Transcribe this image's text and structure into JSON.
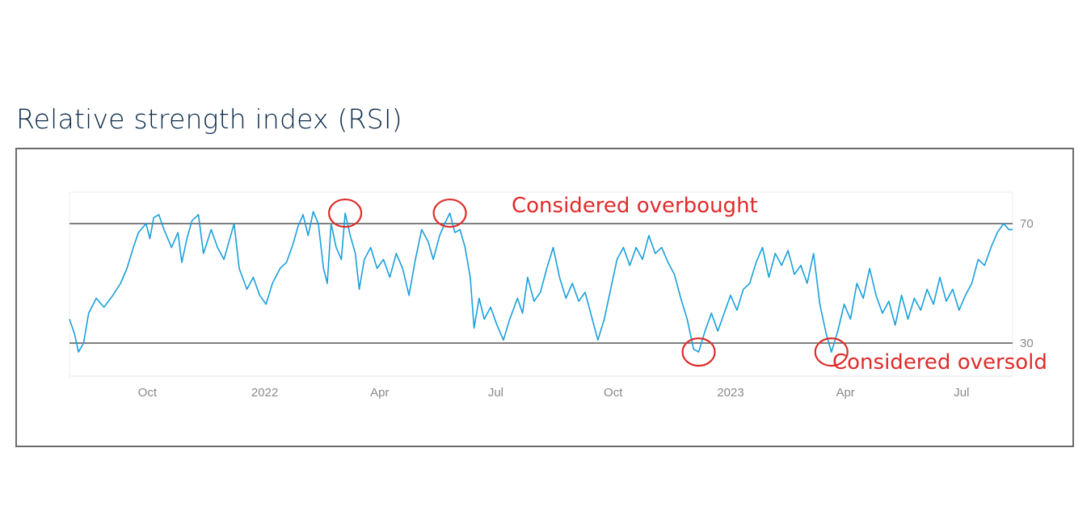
{
  "page": {
    "title": "Relative strength index (RSI)"
  },
  "colors": {
    "line": "#1aa0dc",
    "reference": "#555555",
    "annotation": "#e02b2b",
    "title": "#0b2b4a"
  },
  "chart_data": {
    "type": "line",
    "title": "Relative strength index (RSI)",
    "xlabel": "",
    "ylabel": "",
    "x_range": [
      "2021-08-01",
      "2023-08-10"
    ],
    "ylim": [
      20,
      80
    ],
    "y_ticks": [
      30,
      70
    ],
    "x_ticks": [
      {
        "date": "2021-10-01",
        "label": "Oct"
      },
      {
        "date": "2022-01-01",
        "label": "2022"
      },
      {
        "date": "2022-04-01",
        "label": "Apr"
      },
      {
        "date": "2022-07-01",
        "label": "Jul"
      },
      {
        "date": "2022-10-01",
        "label": "Oct"
      },
      {
        "date": "2023-01-01",
        "label": "2023"
      },
      {
        "date": "2023-04-01",
        "label": "Apr"
      },
      {
        "date": "2023-07-01",
        "label": "Jul"
      }
    ],
    "reference_lines": [
      {
        "y": 70,
        "label": "Considered overbought"
      },
      {
        "y": 30,
        "label": "Considered oversold"
      }
    ],
    "highlights": [
      {
        "date": "2022-03-05",
        "y": 73.5
      },
      {
        "date": "2022-05-26",
        "y": 73.5
      },
      {
        "date": "2022-12-07",
        "y": 27
      },
      {
        "date": "2023-03-21",
        "y": 27
      }
    ],
    "series": [
      {
        "points": [
          [
            "2021-08-01",
            38
          ],
          [
            "2021-08-05",
            33
          ],
          [
            "2021-08-08",
            27
          ],
          [
            "2021-08-12",
            30
          ],
          [
            "2021-08-16",
            40
          ],
          [
            "2021-08-22",
            45
          ],
          [
            "2021-08-28",
            42
          ],
          [
            "2021-09-04",
            46
          ],
          [
            "2021-09-10",
            50
          ],
          [
            "2021-09-15",
            55
          ],
          [
            "2021-09-20",
            62
          ],
          [
            "2021-09-24",
            67
          ],
          [
            "2021-09-30",
            70
          ],
          [
            "2021-10-03",
            65
          ],
          [
            "2021-10-06",
            72
          ],
          [
            "2021-10-10",
            73
          ],
          [
            "2021-10-14",
            68
          ],
          [
            "2021-10-20",
            62
          ],
          [
            "2021-10-25",
            67
          ],
          [
            "2021-10-28",
            57
          ],
          [
            "2021-11-01",
            65
          ],
          [
            "2021-11-05",
            71
          ],
          [
            "2021-11-10",
            73
          ],
          [
            "2021-11-14",
            60
          ],
          [
            "2021-11-20",
            68
          ],
          [
            "2021-11-25",
            62
          ],
          [
            "2021-11-30",
            58
          ],
          [
            "2021-12-04",
            64
          ],
          [
            "2021-12-08",
            70
          ],
          [
            "2021-12-12",
            55
          ],
          [
            "2021-12-18",
            48
          ],
          [
            "2021-12-23",
            52
          ],
          [
            "2021-12-28",
            46
          ],
          [
            "2022-01-02",
            43
          ],
          [
            "2022-01-07",
            50
          ],
          [
            "2022-01-13",
            55
          ],
          [
            "2022-01-18",
            57
          ],
          [
            "2022-01-23",
            63
          ],
          [
            "2022-01-27",
            69
          ],
          [
            "2022-01-31",
            73
          ],
          [
            "2022-02-04",
            66
          ],
          [
            "2022-02-08",
            74
          ],
          [
            "2022-02-12",
            70
          ],
          [
            "2022-02-16",
            55
          ],
          [
            "2022-02-19",
            50
          ],
          [
            "2022-02-22",
            70
          ],
          [
            "2022-02-26",
            62
          ],
          [
            "2022-03-02",
            58
          ],
          [
            "2022-03-05",
            73.5
          ],
          [
            "2022-03-09",
            66
          ],
          [
            "2022-03-13",
            60
          ],
          [
            "2022-03-16",
            48
          ],
          [
            "2022-03-20",
            58
          ],
          [
            "2022-03-25",
            62
          ],
          [
            "2022-03-30",
            55
          ],
          [
            "2022-04-04",
            58
          ],
          [
            "2022-04-09",
            52
          ],
          [
            "2022-04-14",
            60
          ],
          [
            "2022-04-19",
            55
          ],
          [
            "2022-04-24",
            46
          ],
          [
            "2022-04-29",
            58
          ],
          [
            "2022-05-04",
            68
          ],
          [
            "2022-05-09",
            64
          ],
          [
            "2022-05-13",
            58
          ],
          [
            "2022-05-18",
            66
          ],
          [
            "2022-05-22",
            70
          ],
          [
            "2022-05-26",
            73.5
          ],
          [
            "2022-05-30",
            67
          ],
          [
            "2022-06-03",
            68
          ],
          [
            "2022-06-07",
            62
          ],
          [
            "2022-06-11",
            52
          ],
          [
            "2022-06-14",
            35
          ],
          [
            "2022-06-18",
            45
          ],
          [
            "2022-06-22",
            38
          ],
          [
            "2022-06-27",
            42
          ],
          [
            "2022-07-02",
            36
          ],
          [
            "2022-07-07",
            31
          ],
          [
            "2022-07-12",
            38
          ],
          [
            "2022-07-18",
            45
          ],
          [
            "2022-07-22",
            40
          ],
          [
            "2022-07-26",
            52
          ],
          [
            "2022-07-31",
            44
          ],
          [
            "2022-08-05",
            47
          ],
          [
            "2022-08-10",
            55
          ],
          [
            "2022-08-15",
            62
          ],
          [
            "2022-08-20",
            52
          ],
          [
            "2022-08-25",
            45
          ],
          [
            "2022-08-30",
            50
          ],
          [
            "2022-09-04",
            44
          ],
          [
            "2022-09-09",
            47
          ],
          [
            "2022-09-14",
            39
          ],
          [
            "2022-09-19",
            31
          ],
          [
            "2022-09-24",
            38
          ],
          [
            "2022-09-29",
            48
          ],
          [
            "2022-10-04",
            58
          ],
          [
            "2022-10-09",
            62
          ],
          [
            "2022-10-14",
            56
          ],
          [
            "2022-10-19",
            62
          ],
          [
            "2022-10-24",
            58
          ],
          [
            "2022-10-29",
            66
          ],
          [
            "2022-11-03",
            60
          ],
          [
            "2022-11-08",
            62
          ],
          [
            "2022-11-13",
            57
          ],
          [
            "2022-11-18",
            53
          ],
          [
            "2022-11-23",
            45
          ],
          [
            "2022-11-28",
            38
          ],
          [
            "2022-12-03",
            28
          ],
          [
            "2022-12-07",
            27
          ],
          [
            "2022-12-12",
            34
          ],
          [
            "2022-12-17",
            40
          ],
          [
            "2022-12-22",
            34
          ],
          [
            "2022-12-27",
            40
          ],
          [
            "2023-01-01",
            46
          ],
          [
            "2023-01-06",
            41
          ],
          [
            "2023-01-11",
            48
          ],
          [
            "2023-01-16",
            50
          ],
          [
            "2023-01-21",
            57
          ],
          [
            "2023-01-26",
            62
          ],
          [
            "2023-01-31",
            52
          ],
          [
            "2023-02-05",
            60
          ],
          [
            "2023-02-10",
            56
          ],
          [
            "2023-02-15",
            61
          ],
          [
            "2023-02-20",
            53
          ],
          [
            "2023-02-25",
            56
          ],
          [
            "2023-03-02",
            50
          ],
          [
            "2023-03-07",
            60
          ],
          [
            "2023-03-12",
            43
          ],
          [
            "2023-03-17",
            33
          ],
          [
            "2023-03-21",
            27
          ],
          [
            "2023-03-26",
            34
          ],
          [
            "2023-03-31",
            43
          ],
          [
            "2023-04-05",
            38
          ],
          [
            "2023-04-10",
            50
          ],
          [
            "2023-04-15",
            45
          ],
          [
            "2023-04-20",
            55
          ],
          [
            "2023-04-25",
            46
          ],
          [
            "2023-04-30",
            40
          ],
          [
            "2023-05-05",
            44
          ],
          [
            "2023-05-10",
            36
          ],
          [
            "2023-05-15",
            46
          ],
          [
            "2023-05-20",
            38
          ],
          [
            "2023-05-25",
            45
          ],
          [
            "2023-05-30",
            41
          ],
          [
            "2023-06-04",
            48
          ],
          [
            "2023-06-09",
            43
          ],
          [
            "2023-06-14",
            52
          ],
          [
            "2023-06-19",
            44
          ],
          [
            "2023-06-24",
            48
          ],
          [
            "2023-06-29",
            41
          ],
          [
            "2023-07-04",
            46
          ],
          [
            "2023-07-09",
            50
          ],
          [
            "2023-07-14",
            58
          ],
          [
            "2023-07-19",
            56
          ],
          [
            "2023-07-24",
            62
          ],
          [
            "2023-07-29",
            67
          ],
          [
            "2023-08-03",
            70
          ],
          [
            "2023-08-07",
            68
          ],
          [
            "2023-08-10",
            68
          ]
        ]
      }
    ]
  }
}
